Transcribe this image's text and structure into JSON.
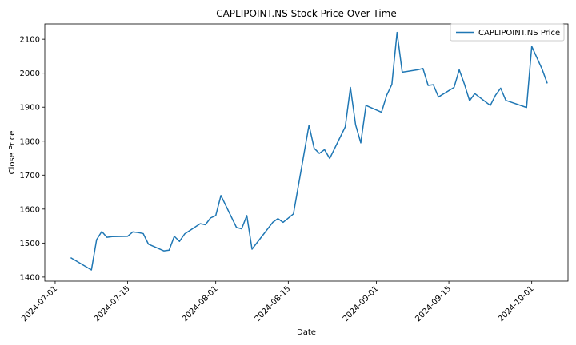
{
  "chart_data": {
    "type": "line",
    "title": "CAPLIPOINT.NS Stock Price Over Time",
    "xlabel": "Date",
    "ylabel": "Close Price",
    "x_tick_labels": [
      "2024-07-01",
      "2024-07-15",
      "2024-08-01",
      "2024-08-15",
      "2024-09-01",
      "2024-09-15",
      "2024-10-01"
    ],
    "y_ticks": [
      1400,
      1500,
      1600,
      1700,
      1800,
      1900,
      2000,
      2100
    ],
    "xlim": [
      "2024-06-29",
      "2024-10-08"
    ],
    "ylim": [
      1388,
      2145
    ],
    "grid": false,
    "legend_position": "top-right",
    "line_color": "#1f77b4",
    "series": [
      {
        "name": "CAPLIPOINT.NS Price",
        "x": [
          "2024-07-04",
          "2024-07-08",
          "2024-07-09",
          "2024-07-10",
          "2024-07-11",
          "2024-07-12",
          "2024-07-15",
          "2024-07-16",
          "2024-07-17",
          "2024-07-18",
          "2024-07-19",
          "2024-07-22",
          "2024-07-23",
          "2024-07-24",
          "2024-07-25",
          "2024-07-26",
          "2024-07-29",
          "2024-07-30",
          "2024-07-31",
          "2024-08-01",
          "2024-08-02",
          "2024-08-05",
          "2024-08-06",
          "2024-08-07",
          "2024-08-08",
          "2024-08-12",
          "2024-08-13",
          "2024-08-14",
          "2024-08-16",
          "2024-08-19",
          "2024-08-20",
          "2024-08-21",
          "2024-08-22",
          "2024-08-23",
          "2024-08-26",
          "2024-08-27",
          "2024-08-28",
          "2024-08-29",
          "2024-08-30",
          "2024-09-02",
          "2024-09-03",
          "2024-09-04",
          "2024-09-05",
          "2024-09-06",
          "2024-09-09",
          "2024-09-10",
          "2024-09-11",
          "2024-09-12",
          "2024-09-13",
          "2024-09-16",
          "2024-09-17",
          "2024-09-18",
          "2024-09-19",
          "2024-09-20",
          "2024-09-23",
          "2024-09-24",
          "2024-09-25",
          "2024-09-26",
          "2024-09-30",
          "2024-10-01",
          "2024-10-03",
          "2024-10-04"
        ],
        "values": [
          1457,
          1421,
          1510,
          1534,
          1517,
          1519,
          1520,
          1533,
          1531,
          1528,
          1497,
          1477,
          1479,
          1520,
          1505,
          1527,
          1557,
          1554,
          1574,
          1581,
          1640,
          1546,
          1542,
          1581,
          1482,
          1561,
          1572,
          1561,
          1586,
          1847,
          1779,
          1764,
          1775,
          1749,
          1842,
          1958,
          1848,
          1795,
          1905,
          1885,
          1935,
          1967,
          2120,
          2003,
          2010,
          2014,
          1964,
          1966,
          1930,
          1958,
          2010,
          1968,
          1919,
          1940,
          1905,
          1935,
          1956,
          1920,
          1899,
          2079,
          2012,
          1970
        ]
      }
    ]
  }
}
